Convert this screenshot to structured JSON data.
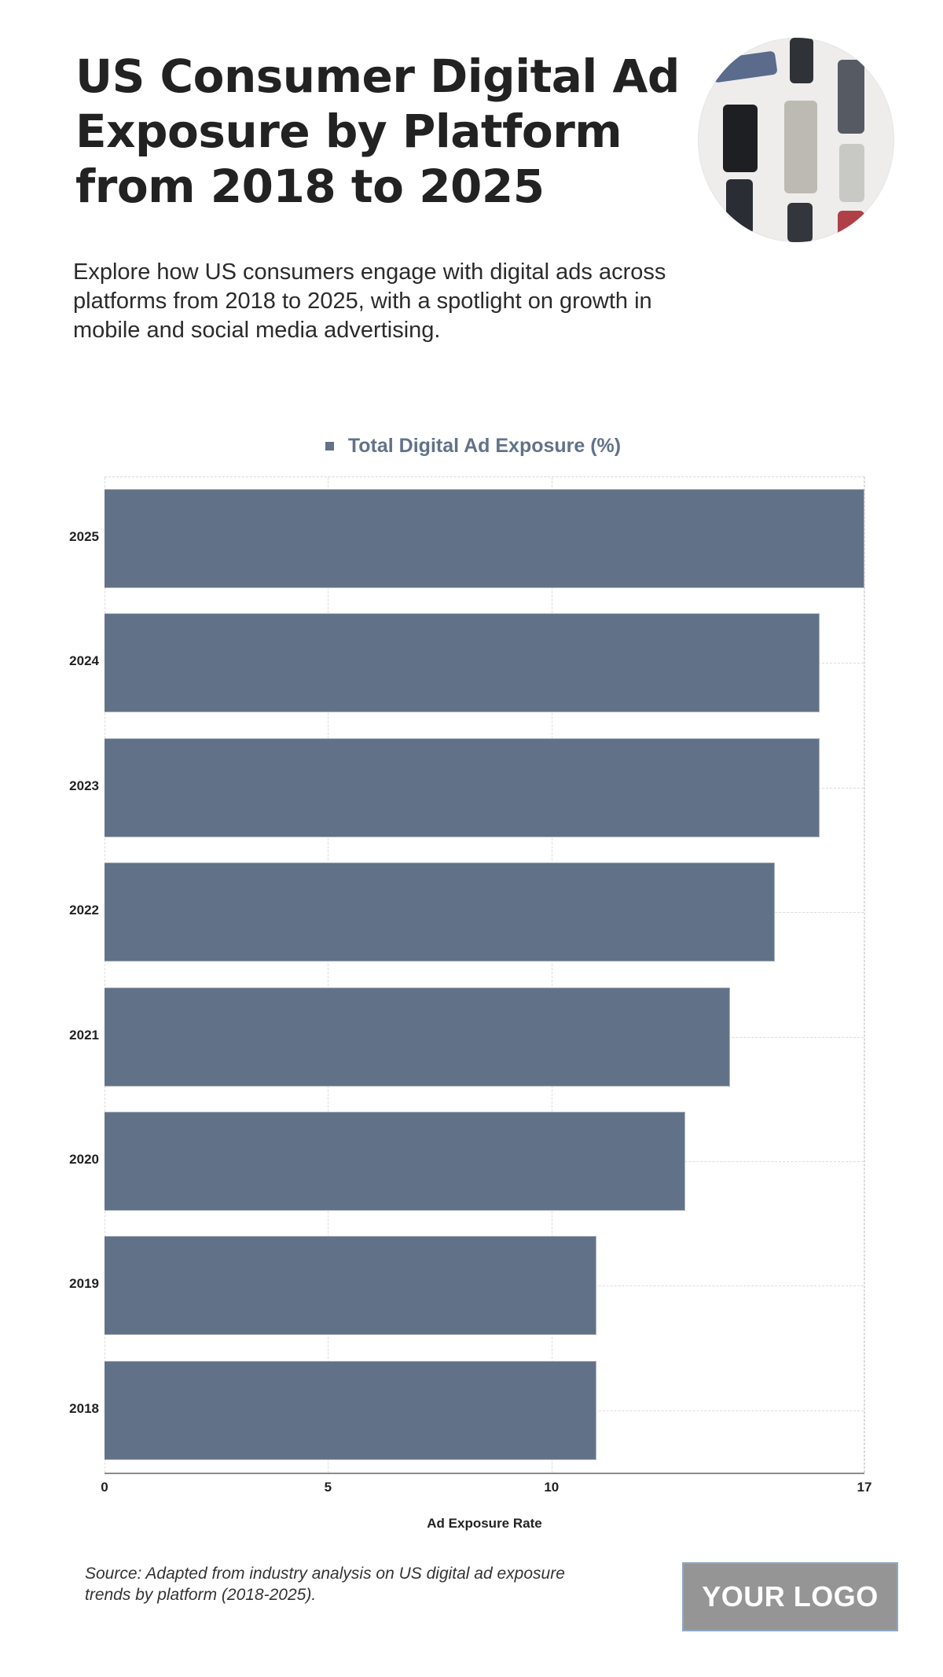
{
  "header": {
    "title": "US Consumer Digital Ad Exposure by Platform from 2018 to 2025",
    "subtitle": "Explore how US consumers engage with digital ads across platforms from 2018 to 2025, with a spotlight on growth in mobile and social media advertising.",
    "image_icon": "mobile-phones-photo"
  },
  "colors": {
    "bar": "#617288",
    "legend_text": "#62728a",
    "title": "#222222",
    "logo_bg": "#959595"
  },
  "legend": {
    "label": "Total Digital Ad Exposure (%)"
  },
  "chart_data": {
    "type": "bar",
    "orientation": "horizontal",
    "title": "",
    "categories": [
      "2025",
      "2024",
      "2023",
      "2022",
      "2021",
      "2020",
      "2019",
      "2018"
    ],
    "series": [
      {
        "name": "Total Digital Ad Exposure (%)",
        "values": [
          17,
          16,
          16,
          15,
          14,
          13,
          11,
          11
        ]
      }
    ],
    "xlabel": "Ad Exposure Rate",
    "ylabel": "",
    "xlim": [
      0,
      17
    ],
    "x_ticks": [
      "0",
      "5",
      "10",
      "17"
    ],
    "grid": true,
    "legend_position": "top"
  },
  "footer": {
    "source": "Source: Adapted from industry analysis on US digital ad exposure trends by platform (2018-2025).",
    "logo": "YOUR LOGO"
  }
}
